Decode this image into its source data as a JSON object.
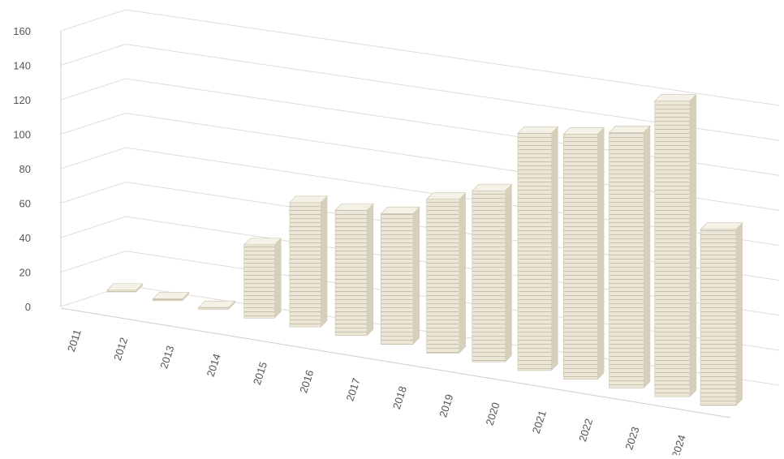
{
  "chart_data": {
    "type": "bar3d",
    "categories": [
      "2011",
      "2012",
      "2013",
      "2014",
      "2015",
      "2016",
      "2017",
      "2018",
      "2019",
      "2020",
      "2021",
      "2022",
      "2023",
      "2024"
    ],
    "values": [
      1,
      1,
      1,
      37,
      61,
      60,
      61,
      70,
      76,
      103,
      104,
      106,
      120,
      70
    ],
    "color": "#e8e3d1",
    "ylim": [
      0,
      160
    ],
    "yticks": [
      0,
      20,
      40,
      60,
      80,
      100,
      120,
      140,
      160
    ],
    "grid": true
  }
}
